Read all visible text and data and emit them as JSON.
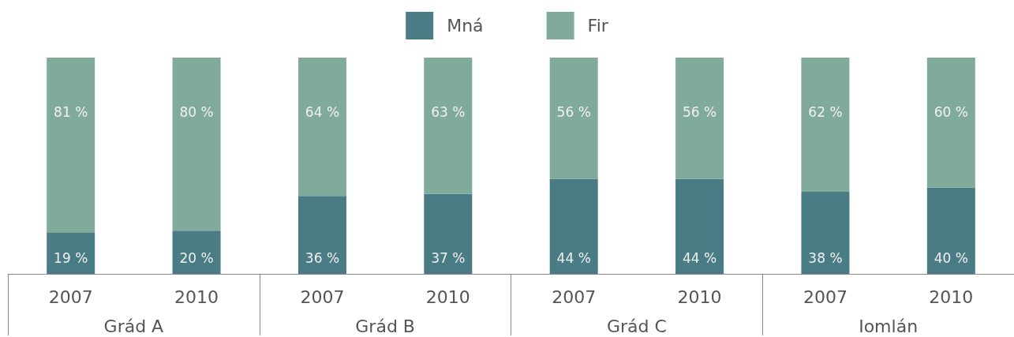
{
  "chart_data": {
    "type": "bar",
    "stacked": true,
    "legend": "top",
    "categories": [
      "2007",
      "2010",
      "2007",
      "2010",
      "2007",
      "2010",
      "2007",
      "2010"
    ],
    "annotations": [
      "Grád A",
      "Grád B",
      "Grád C",
      "Iomlán"
    ],
    "series": [
      {
        "name": "Mná",
        "color": "#4a7c85",
        "values": [
          19,
          20,
          36,
          37,
          44,
          44,
          38,
          40
        ],
        "value_labels": [
          "19 %",
          "20 %",
          "36 %",
          "37 %",
          "44 %",
          "44 %",
          "38 %",
          "40 %"
        ]
      },
      {
        "name": "Fir",
        "color": "#80ab9b",
        "values": [
          81,
          80,
          64,
          63,
          56,
          56,
          62,
          60
        ],
        "value_labels": [
          "81 %",
          "80 %",
          "64 %",
          "63 %",
          "56 %",
          "56 %",
          "62 %",
          "60 %"
        ]
      }
    ]
  }
}
